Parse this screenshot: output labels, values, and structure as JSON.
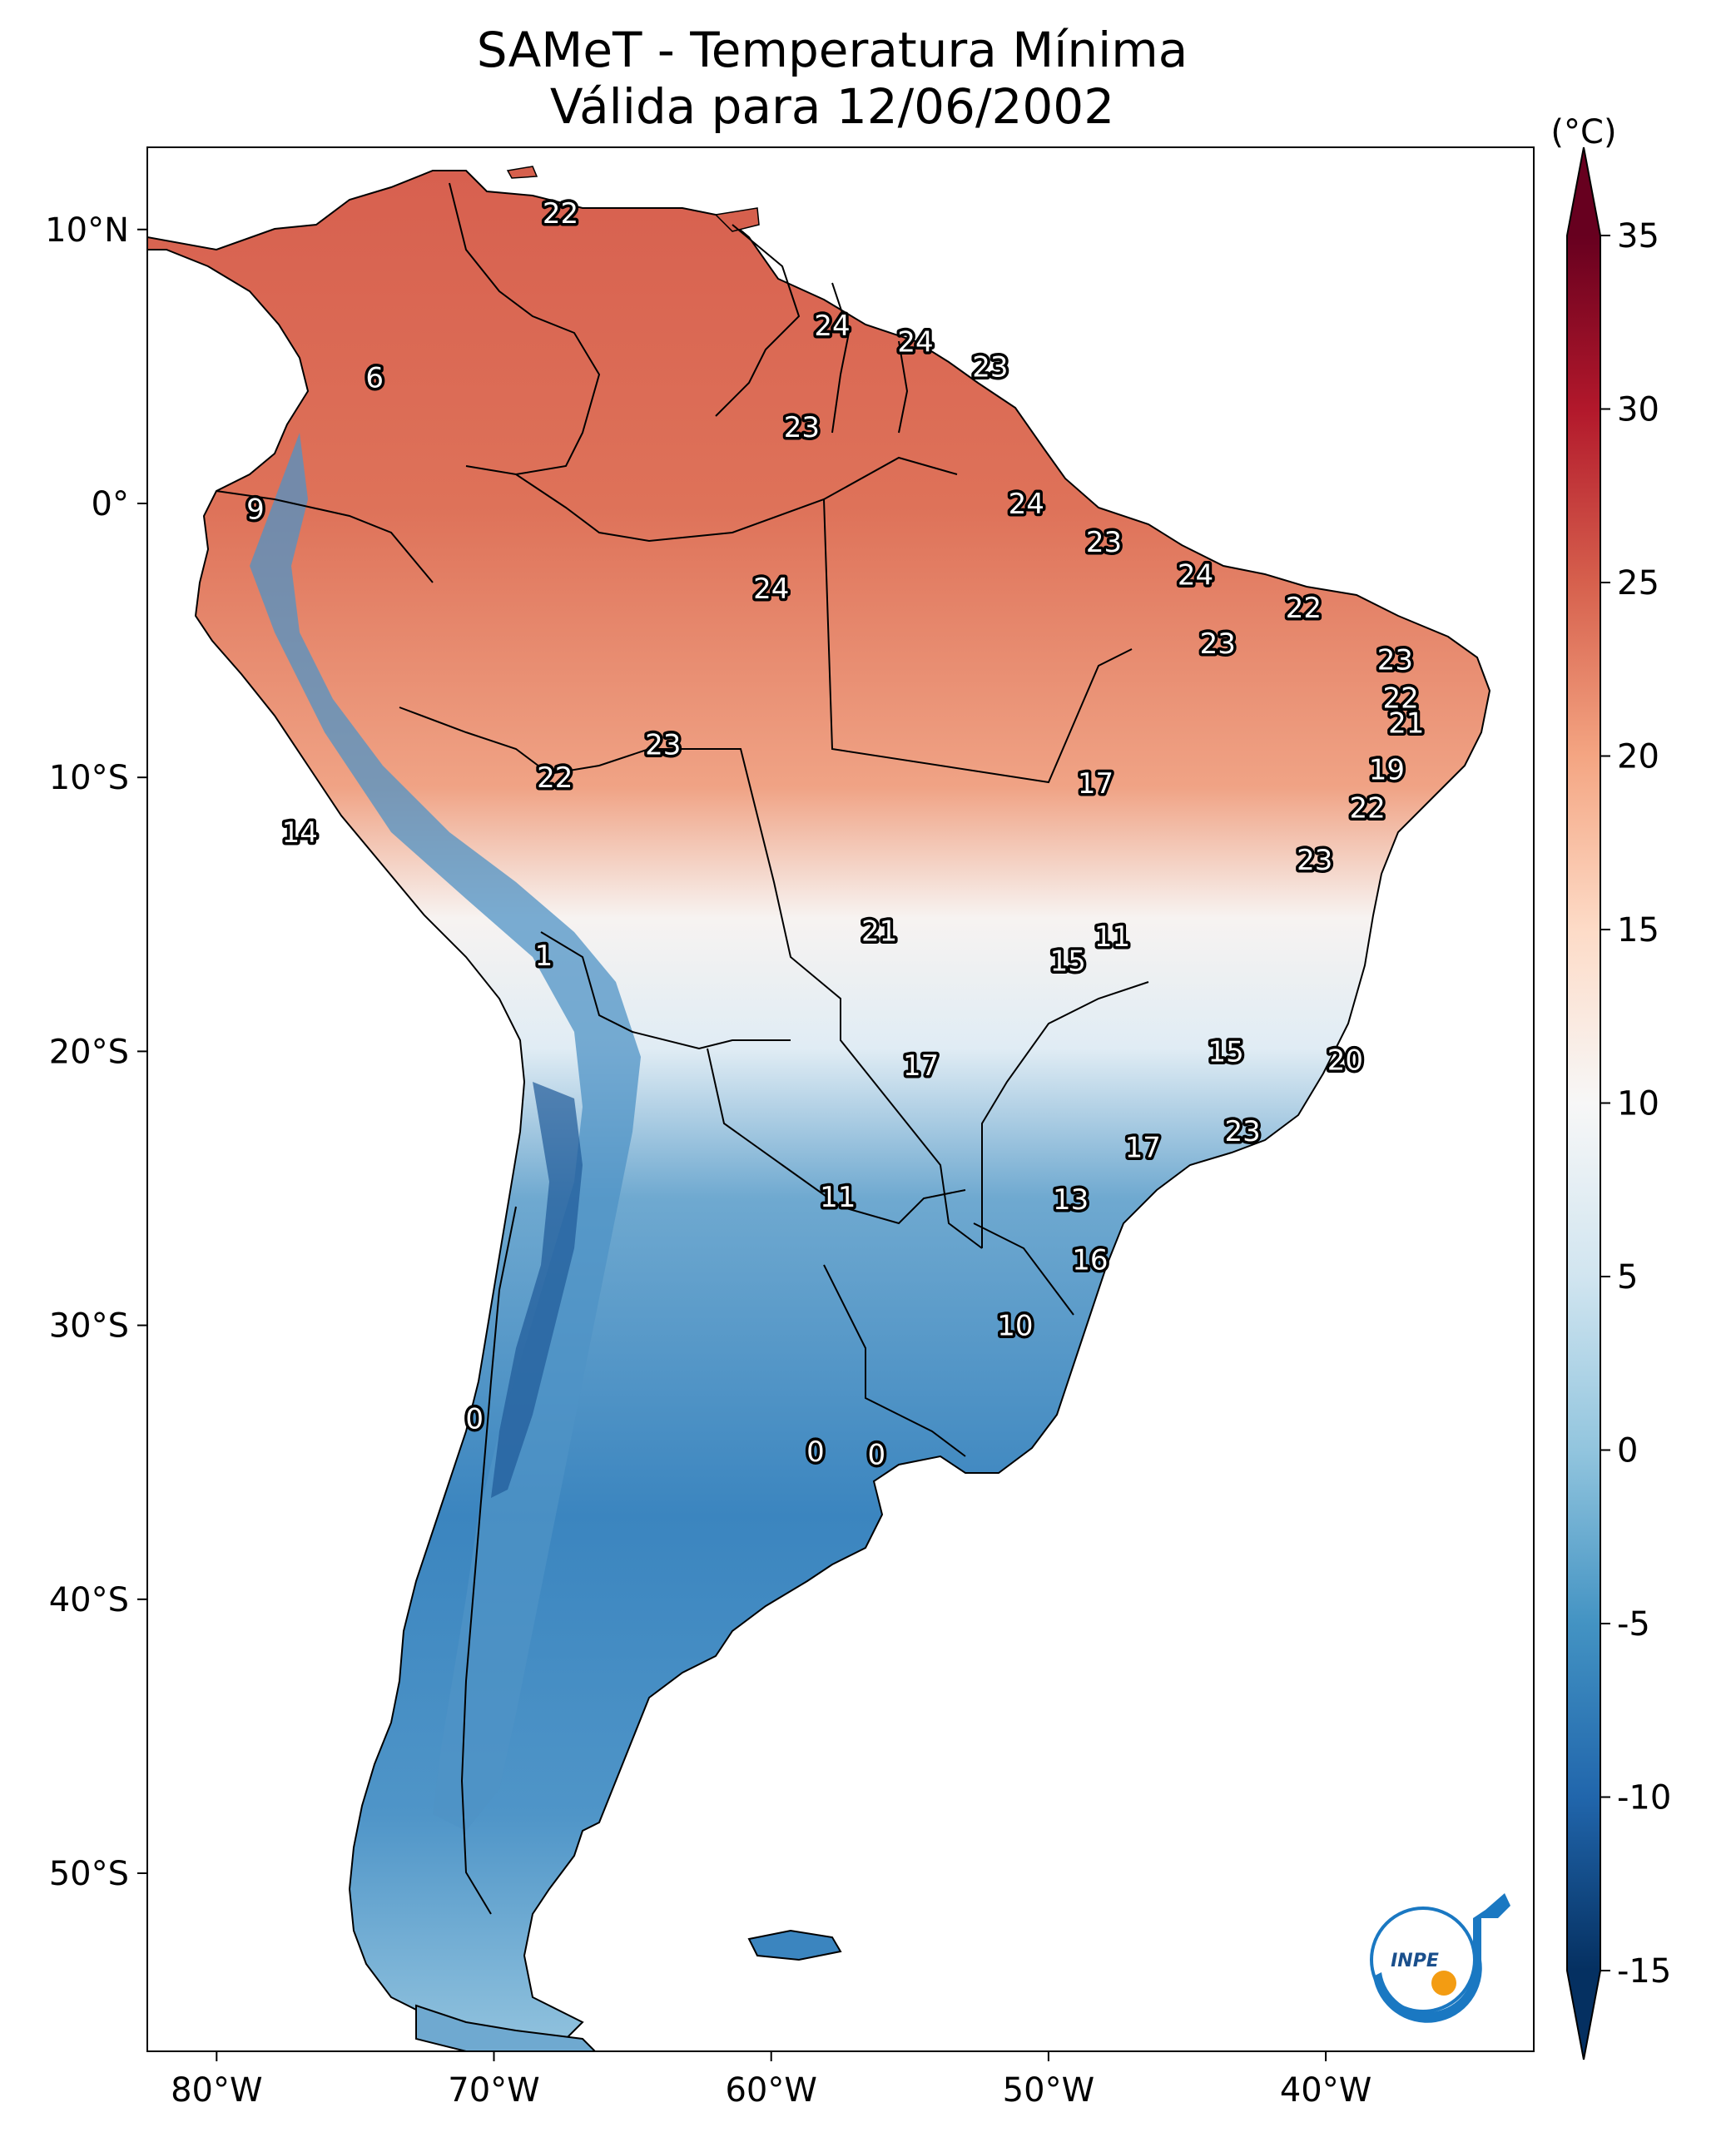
{
  "title": {
    "line1": "SAMeT - Temperatura Mínima",
    "line2": "Válida para 12/06/2002"
  },
  "map": {
    "lon_range": [
      -82.5,
      -32.5
    ],
    "lat_range": [
      -56.5,
      13
    ],
    "lon_ticks": [
      {
        "value": -80,
        "label": "80°W"
      },
      {
        "value": -70,
        "label": "70°W"
      },
      {
        "value": -60,
        "label": "60°W"
      },
      {
        "value": -50,
        "label": "50°W"
      },
      {
        "value": -40,
        "label": "40°W"
      }
    ],
    "lat_ticks": [
      {
        "value": 10,
        "label": "10°N"
      },
      {
        "value": 0,
        "label": "0°"
      },
      {
        "value": -10,
        "label": "10°S"
      },
      {
        "value": -20,
        "label": "20°S"
      },
      {
        "value": -30,
        "label": "30°S"
      },
      {
        "value": -40,
        "label": "40°S"
      },
      {
        "value": -50,
        "label": "50°S"
      }
    ],
    "station_values": [
      {
        "lon": -67.6,
        "lat": 10.6,
        "value": "22"
      },
      {
        "lon": -57.8,
        "lat": 6.5,
        "value": "24"
      },
      {
        "lon": -54.8,
        "lat": 5.9,
        "value": "24"
      },
      {
        "lon": -52.1,
        "lat": 5.0,
        "value": "23"
      },
      {
        "lon": -74.3,
        "lat": 4.6,
        "value": "6"
      },
      {
        "lon": -58.9,
        "lat": 2.8,
        "value": "23"
      },
      {
        "lon": -50.8,
        "lat": 0.0,
        "value": "24"
      },
      {
        "lon": -78.6,
        "lat": -0.2,
        "value": "9"
      },
      {
        "lon": -48.0,
        "lat": -1.4,
        "value": "23"
      },
      {
        "lon": -44.7,
        "lat": -2.6,
        "value": "24"
      },
      {
        "lon": -60.0,
        "lat": -3.1,
        "value": "24"
      },
      {
        "lon": -40.8,
        "lat": -3.8,
        "value": "22"
      },
      {
        "lon": -43.9,
        "lat": -5.1,
        "value": "23"
      },
      {
        "lon": -37.5,
        "lat": -5.7,
        "value": "23"
      },
      {
        "lon": -37.3,
        "lat": -7.1,
        "value": "22"
      },
      {
        "lon": -37.1,
        "lat": -8.0,
        "value": "21"
      },
      {
        "lon": -63.9,
        "lat": -8.8,
        "value": "23"
      },
      {
        "lon": -37.8,
        "lat": -9.7,
        "value": "19"
      },
      {
        "lon": -67.8,
        "lat": -10.0,
        "value": "22"
      },
      {
        "lon": -48.3,
        "lat": -10.2,
        "value": "17"
      },
      {
        "lon": -38.5,
        "lat": -11.1,
        "value": "22"
      },
      {
        "lon": -77.0,
        "lat": -12.0,
        "value": "14"
      },
      {
        "lon": -40.4,
        "lat": -13.0,
        "value": "23"
      },
      {
        "lon": -56.1,
        "lat": -15.6,
        "value": "21"
      },
      {
        "lon": -47.7,
        "lat": -15.8,
        "value": "11"
      },
      {
        "lon": -49.3,
        "lat": -16.7,
        "value": "15"
      },
      {
        "lon": -68.2,
        "lat": -16.5,
        "value": "1"
      },
      {
        "lon": -43.6,
        "lat": -20.0,
        "value": "15"
      },
      {
        "lon": -54.6,
        "lat": -20.5,
        "value": "17"
      },
      {
        "lon": -39.3,
        "lat": -20.3,
        "value": "20"
      },
      {
        "lon": -43.0,
        "lat": -22.9,
        "value": "23"
      },
      {
        "lon": -46.6,
        "lat": -23.5,
        "value": "17"
      },
      {
        "lon": -57.6,
        "lat": -25.3,
        "value": "11"
      },
      {
        "lon": -49.2,
        "lat": -25.4,
        "value": "13"
      },
      {
        "lon": -48.5,
        "lat": -27.6,
        "value": "16"
      },
      {
        "lon": -51.2,
        "lat": -30.0,
        "value": "10"
      },
      {
        "lon": -70.7,
        "lat": -33.4,
        "value": "0"
      },
      {
        "lon": -58.4,
        "lat": -34.6,
        "value": "0"
      },
      {
        "lon": -56.2,
        "lat": -34.7,
        "value": "0"
      }
    ]
  },
  "colorbar": {
    "unit_label": "(°C)",
    "min": -15,
    "max": 35,
    "ticks": [
      {
        "value": 35,
        "label": "35"
      },
      {
        "value": 30,
        "label": "30"
      },
      {
        "value": 25,
        "label": "25"
      },
      {
        "value": 20,
        "label": "20"
      },
      {
        "value": 15,
        "label": "15"
      },
      {
        "value": 10,
        "label": "10"
      },
      {
        "value": 5,
        "label": "5"
      },
      {
        "value": 0,
        "label": "0"
      },
      {
        "value": -5,
        "label": "-5"
      },
      {
        "value": -10,
        "label": "-10"
      },
      {
        "value": -15,
        "label": "-15"
      }
    ],
    "colors": [
      "#053061",
      "#2166ac",
      "#4393c3",
      "#92c5de",
      "#d1e5f0",
      "#f7f7f7",
      "#fddbc7",
      "#f4a582",
      "#d6604d",
      "#b2182b",
      "#67001f"
    ]
  },
  "logo": {
    "text": "INPE",
    "ring_color": "#1a78c2",
    "dot_color": "#f39c12"
  }
}
